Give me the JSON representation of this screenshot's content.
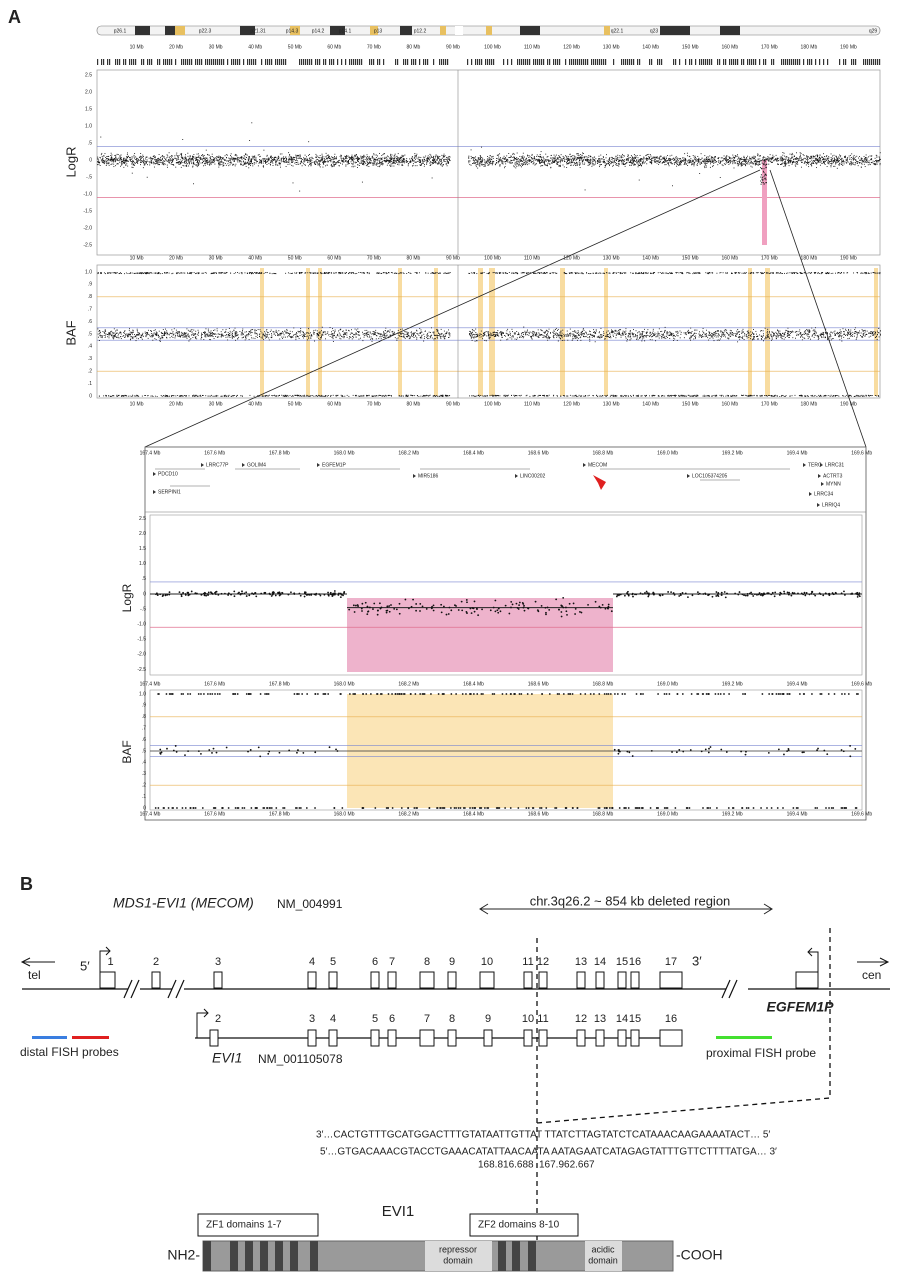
{
  "panel_a": {
    "label": "A",
    "cytobands": [
      "p26.1",
      "p22.3",
      "p21.31",
      "p14.3",
      "p14.2",
      "p14.1",
      "p13",
      "p12.2",
      "q22.1",
      "q23",
      "q29"
    ],
    "genome_x_ticks": [
      "10 Mb",
      "20 Mb",
      "30 Mb",
      "40 Mb",
      "50 Mb",
      "60 Mb",
      "70 Mb",
      "80 Mb",
      "90 Mb",
      "100 Mb",
      "110 Mb",
      "120 Mb",
      "130 Mb",
      "140 Mb",
      "150 Mb",
      "160 Mb",
      "170 Mb",
      "180 Mb",
      "190 Mb"
    ],
    "logr_label": "LogR",
    "baf_label": "BAF",
    "logr_ticks": [
      "2.5",
      "2.0",
      "1.5",
      "1.0",
      ".5",
      "0",
      "-.5",
      "-1.0",
      "-1.5",
      "-2.0",
      "-2.5"
    ],
    "baf_ticks": [
      "1.0",
      ".9",
      ".8",
      ".7",
      ".6",
      ".5",
      ".4",
      ".3",
      ".2",
      ".1",
      "0"
    ],
    "zoom_x_ticks": [
      "167.4 Mb",
      "167.6 Mb",
      "167.8 Mb",
      "168.0 Mb",
      "168.2 Mb",
      "168.4 Mb",
      "168.6 Mb",
      "168.8 Mb",
      "169.0 Mb",
      "169.2 Mb",
      "169.4 Mb",
      "169.6 Mb"
    ],
    "genes": [
      "PDCD10",
      "SERPINI1",
      "LRRC77P",
      "GOLIM4",
      "EGFEM1P",
      "MIR5186",
      "LINC00202",
      "MECOM",
      "LOC105374205",
      "TERC",
      "ACTRT3",
      "MYNN",
      "LRRC34",
      "LRRIQ4",
      "LRRC31"
    ]
  },
  "panel_b": {
    "label": "B",
    "gene_title": "MDS1-EVI1 (MECOM)",
    "gene_accession": "NM_004991",
    "deleted_region": "chr.3q26.2  ~ 854 kb deleted region",
    "tel": "tel",
    "cen": "cen",
    "five_prime": "5′",
    "three_prime": "3′",
    "top_exons": [
      "1",
      "2",
      "3",
      "4",
      "5",
      "6",
      "7",
      "8",
      "9",
      "10",
      "11",
      "12",
      "13",
      "14",
      "15",
      "16",
      "17"
    ],
    "neighbor_gene": "EGFEM1P",
    "bottom_exons": [
      "2",
      "3",
      "4",
      "5",
      "6",
      "7",
      "8",
      "9",
      "10",
      "11",
      "12",
      "13",
      "14",
      "15",
      "16"
    ],
    "evi1_title": "EVI1",
    "evi1_accession": "NM_001105078",
    "distal_probe": "distal FISH probes",
    "proximal_probe": "proximal FISH probe",
    "sequences": [
      "3′…CACTGTTTGCATGGACTTTGTATAATTGTTAT    TTATCTTAGTATCTCATAAACAAGAAAATACT… 5′",
      "5′…GTGACAAACGTACCTGAAACATATTAACAATA   AATAGAATCATAGAGTATTTGTTCTTTTATGA… 3′"
    ],
    "breakpoints": [
      "168.816.688",
      "167.962.667"
    ],
    "protein_title": "EVI1",
    "zf1": "ZF1 domains 1-7",
    "zf2": "ZF2 domains 8-10",
    "nterm": "NH2-",
    "cterm": "-COOH",
    "repressor": [
      "repressor",
      "domain"
    ],
    "acidic": [
      "acidic",
      "domain"
    ]
  }
}
